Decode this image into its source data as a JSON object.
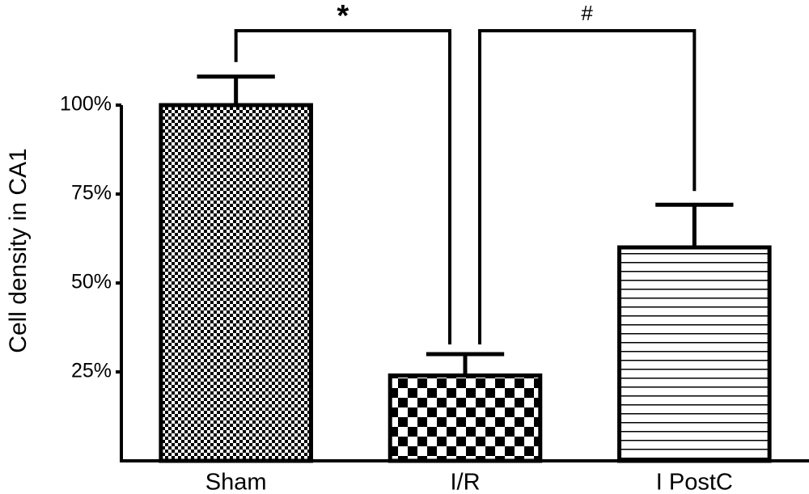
{
  "chart_data": {
    "type": "bar",
    "y_label": "Cell density in CA1",
    "categories": [
      "Sham",
      "I/R",
      "I PostC"
    ],
    "values": [
      100,
      24,
      60
    ],
    "errors": [
      8,
      6,
      12
    ],
    "ylim": [
      0,
      100
    ],
    "yticks": [
      {
        "value": 25,
        "label": "25%"
      },
      {
        "value": 50,
        "label": "50%"
      },
      {
        "value": 75,
        "label": "75%"
      },
      {
        "value": 100,
        "label": "100%"
      }
    ],
    "annotations": [
      "*",
      "#"
    ],
    "color": "#000000"
  }
}
